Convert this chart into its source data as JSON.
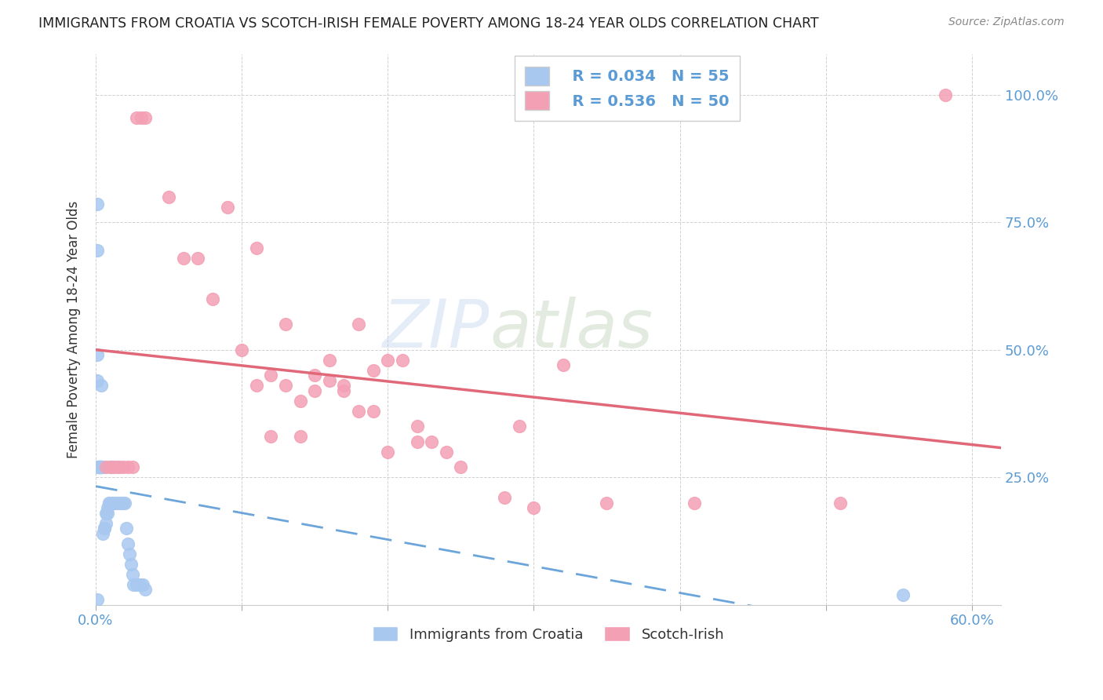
{
  "title": "IMMIGRANTS FROM CROATIA VS SCOTCH-IRISH FEMALE POVERTY AMONG 18-24 YEAR OLDS CORRELATION CHART",
  "source": "Source: ZipAtlas.com",
  "ylabel": "Female Poverty Among 18-24 Year Olds",
  "xlim": [
    0.0,
    0.62
  ],
  "ylim": [
    0.0,
    1.08
  ],
  "background_color": "#ffffff",
  "legend_r1": "R = 0.034",
  "legend_n1": "N = 55",
  "legend_r2": "R = 0.536",
  "legend_n2": "N = 50",
  "croatia_color": "#a8c8f0",
  "scotch_color": "#f4a0b4",
  "croatia_line_color": "#5b9bd5",
  "scotch_line_color": "#e06878",
  "grid_color": "#cccccc",
  "text_color_blue": "#5b9bd5",
  "text_color_dark": "#222222",
  "text_color_source": "#888888",
  "croatia_x": [
    0.001,
    0.001,
    0.001,
    0.001,
    0.002,
    0.002,
    0.002,
    0.002,
    0.003,
    0.003,
    0.003,
    0.004,
    0.004,
    0.004,
    0.005,
    0.005,
    0.005,
    0.006,
    0.006,
    0.007,
    0.007,
    0.008,
    0.008,
    0.009,
    0.009,
    0.01,
    0.01,
    0.011,
    0.011,
    0.012,
    0.012,
    0.013,
    0.014,
    0.015,
    0.015,
    0.016,
    0.017,
    0.018,
    0.019,
    0.02,
    0.021,
    0.022,
    0.023,
    0.024,
    0.025,
    0.026,
    0.028,
    0.03,
    0.032,
    0.034,
    0.001,
    0.002,
    0.003,
    0.553,
    0.001
  ],
  "croatia_y": [
    0.785,
    0.695,
    0.27,
    0.44,
    0.27,
    0.27,
    0.27,
    0.27,
    0.27,
    0.27,
    0.27,
    0.27,
    0.27,
    0.43,
    0.27,
    0.27,
    0.14,
    0.15,
    0.15,
    0.16,
    0.18,
    0.18,
    0.19,
    0.2,
    0.2,
    0.27,
    0.27,
    0.2,
    0.2,
    0.27,
    0.2,
    0.2,
    0.2,
    0.27,
    0.2,
    0.2,
    0.2,
    0.2,
    0.2,
    0.2,
    0.15,
    0.12,
    0.1,
    0.08,
    0.06,
    0.04,
    0.04,
    0.04,
    0.04,
    0.03,
    0.49,
    0.27,
    0.27,
    0.02,
    0.01
  ],
  "scotch_x": [
    0.007,
    0.01,
    0.013,
    0.016,
    0.019,
    0.022,
    0.025,
    0.028,
    0.031,
    0.034,
    0.05,
    0.06,
    0.07,
    0.08,
    0.09,
    0.1,
    0.11,
    0.12,
    0.13,
    0.14,
    0.15,
    0.16,
    0.17,
    0.18,
    0.19,
    0.2,
    0.21,
    0.22,
    0.23,
    0.24,
    0.11,
    0.13,
    0.15,
    0.17,
    0.19,
    0.25,
    0.28,
    0.3,
    0.32,
    0.35,
    0.29,
    0.22,
    0.2,
    0.18,
    0.16,
    0.14,
    0.12,
    0.41,
    0.51,
    0.582
  ],
  "scotch_y": [
    0.27,
    0.27,
    0.27,
    0.27,
    0.27,
    0.27,
    0.27,
    0.955,
    0.955,
    0.955,
    0.8,
    0.68,
    0.68,
    0.6,
    0.78,
    0.5,
    0.7,
    0.45,
    0.55,
    0.4,
    0.42,
    0.44,
    0.42,
    0.38,
    0.38,
    0.3,
    0.48,
    0.32,
    0.32,
    0.3,
    0.43,
    0.43,
    0.45,
    0.43,
    0.46,
    0.27,
    0.21,
    0.19,
    0.47,
    0.2,
    0.35,
    0.35,
    0.48,
    0.55,
    0.48,
    0.33,
    0.33,
    0.2,
    0.2,
    1.0
  ]
}
